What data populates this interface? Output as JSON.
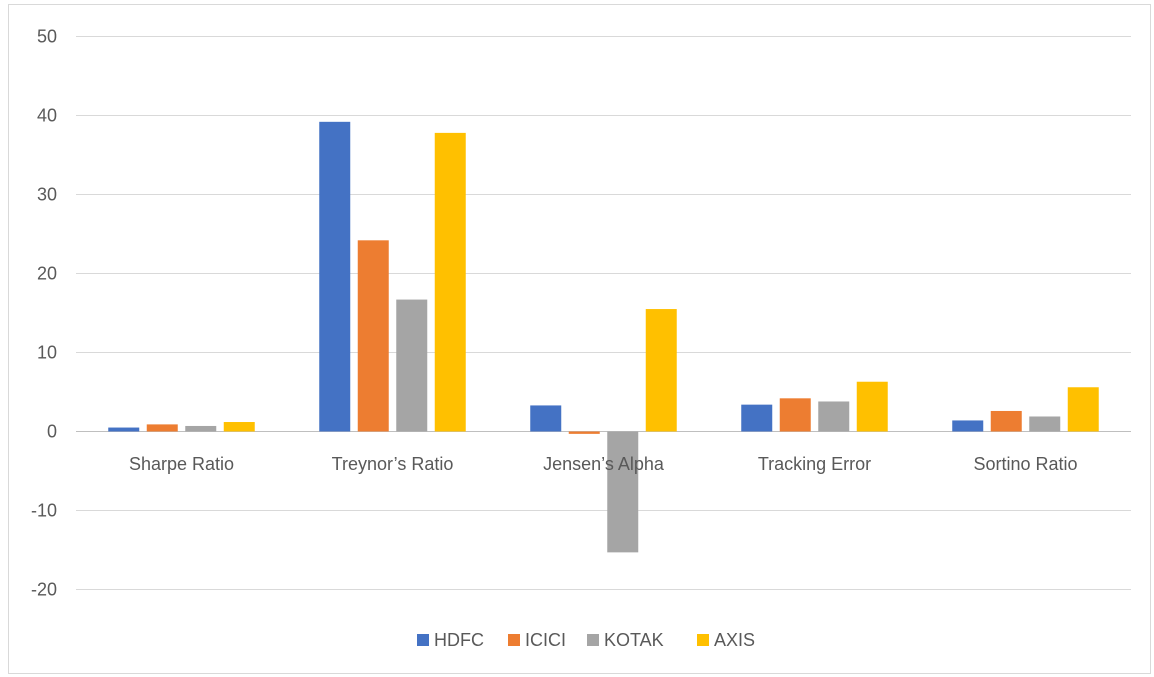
{
  "chart_data": {
    "type": "bar",
    "categories": [
      "Sharpe Ratio",
      "Treynor’s Ratio",
      "Jensen’s Alpha",
      "Tracking Error",
      "Sortino Ratio"
    ],
    "series": [
      {
        "name": "HDFC",
        "color": "#4472c4",
        "values": [
          0.5,
          39.2,
          3.3,
          3.4,
          1.4
        ]
      },
      {
        "name": "ICICI",
        "color": "#ed7d31",
        "values": [
          0.9,
          24.2,
          -0.3,
          4.2,
          2.6
        ]
      },
      {
        "name": "KOTAK",
        "color": "#a5a5a5",
        "values": [
          0.7,
          16.7,
          -15.3,
          3.8,
          1.9
        ]
      },
      {
        "name": "AXIS",
        "color": "#ffc000",
        "values": [
          1.2,
          37.8,
          15.5,
          6.3,
          5.6
        ]
      }
    ],
    "ylim": [
      -20,
      50
    ],
    "yticks": [
      -20,
      -10,
      0,
      10,
      20,
      30,
      40,
      50
    ],
    "grid": true,
    "legend": "bottom",
    "title": "",
    "xlabel": "",
    "ylabel": ""
  }
}
